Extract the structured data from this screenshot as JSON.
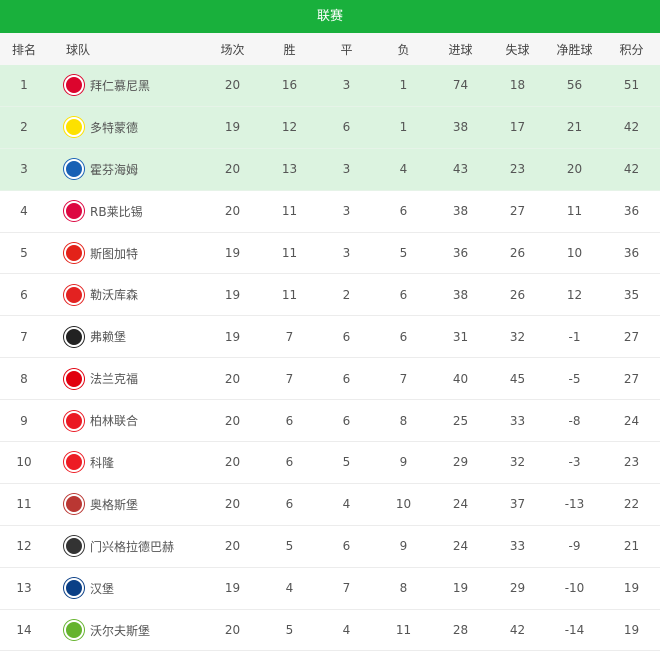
{
  "title": "联赛",
  "headers": [
    "排名",
    "球队",
    "场次",
    "胜",
    "平",
    "负",
    "进球",
    "失球",
    "净胜球",
    "积分"
  ],
  "rows": [
    {
      "rank": "1",
      "team": "拜仁慕尼黑",
      "logo": "bayern-logo-icon",
      "color": "#dc052d",
      "stats": [
        "20",
        "16",
        "3",
        "1",
        "74",
        "18",
        "56",
        "51"
      ]
    },
    {
      "rank": "2",
      "team": "多特蒙德",
      "logo": "dortmund-logo-icon",
      "color": "#fde100",
      "stats": [
        "19",
        "12",
        "6",
        "1",
        "38",
        "17",
        "21",
        "42"
      ]
    },
    {
      "rank": "3",
      "team": "霍芬海姆",
      "logo": "hoffenheim-logo-icon",
      "color": "#1961b5",
      "stats": [
        "20",
        "13",
        "3",
        "4",
        "43",
        "23",
        "20",
        "42"
      ]
    },
    {
      "rank": "4",
      "team": "RB莱比锡",
      "logo": "leipzig-logo-icon",
      "color": "#dd0741",
      "stats": [
        "20",
        "11",
        "3",
        "6",
        "38",
        "27",
        "11",
        "36"
      ]
    },
    {
      "rank": "5",
      "team": "斯图加特",
      "logo": "stuttgart-logo-icon",
      "color": "#e32219",
      "stats": [
        "19",
        "11",
        "3",
        "5",
        "36",
        "26",
        "10",
        "36"
      ]
    },
    {
      "rank": "6",
      "team": "勒沃库森",
      "logo": "leverkusen-logo-icon",
      "color": "#e32221",
      "stats": [
        "19",
        "11",
        "2",
        "6",
        "38",
        "26",
        "12",
        "35"
      ]
    },
    {
      "rank": "7",
      "team": "弗赖堡",
      "logo": "freiburg-logo-icon",
      "color": "#222222",
      "stats": [
        "19",
        "7",
        "6",
        "6",
        "31",
        "32",
        "-1",
        "27"
      ]
    },
    {
      "rank": "8",
      "team": "法兰克福",
      "logo": "frankfurt-logo-icon",
      "color": "#e1000f",
      "stats": [
        "20",
        "7",
        "6",
        "7",
        "40",
        "45",
        "-5",
        "27"
      ]
    },
    {
      "rank": "9",
      "team": "柏林联合",
      "logo": "union-berlin-logo-icon",
      "color": "#eb1923",
      "stats": [
        "20",
        "6",
        "6",
        "8",
        "25",
        "33",
        "-8",
        "24"
      ]
    },
    {
      "rank": "10",
      "team": "科隆",
      "logo": "koln-logo-icon",
      "color": "#ed1c24",
      "stats": [
        "20",
        "6",
        "5",
        "9",
        "29",
        "32",
        "-3",
        "23"
      ]
    },
    {
      "rank": "11",
      "team": "奥格斯堡",
      "logo": "augsburg-logo-icon",
      "color": "#ba3733",
      "stats": [
        "20",
        "6",
        "4",
        "10",
        "24",
        "37",
        "-13",
        "22"
      ]
    },
    {
      "rank": "12",
      "team": "门兴格拉德巴赫",
      "logo": "gladbach-logo-icon",
      "color": "#333333",
      "stats": [
        "20",
        "5",
        "6",
        "9",
        "24",
        "33",
        "-9",
        "21"
      ]
    },
    {
      "rank": "13",
      "team": "汉堡",
      "logo": "hamburg-logo-icon",
      "color": "#0a3f86",
      "stats": [
        "19",
        "4",
        "7",
        "8",
        "19",
        "29",
        "-10",
        "19"
      ]
    },
    {
      "rank": "14",
      "team": "沃尔夫斯堡",
      "logo": "wolfsburg-logo-icon",
      "color": "#65b32e",
      "stats": [
        "20",
        "5",
        "4",
        "11",
        "28",
        "42",
        "-14",
        "19"
      ]
    }
  ],
  "highlight_color": "#dcf3e0",
  "accent": "#19b03c"
}
